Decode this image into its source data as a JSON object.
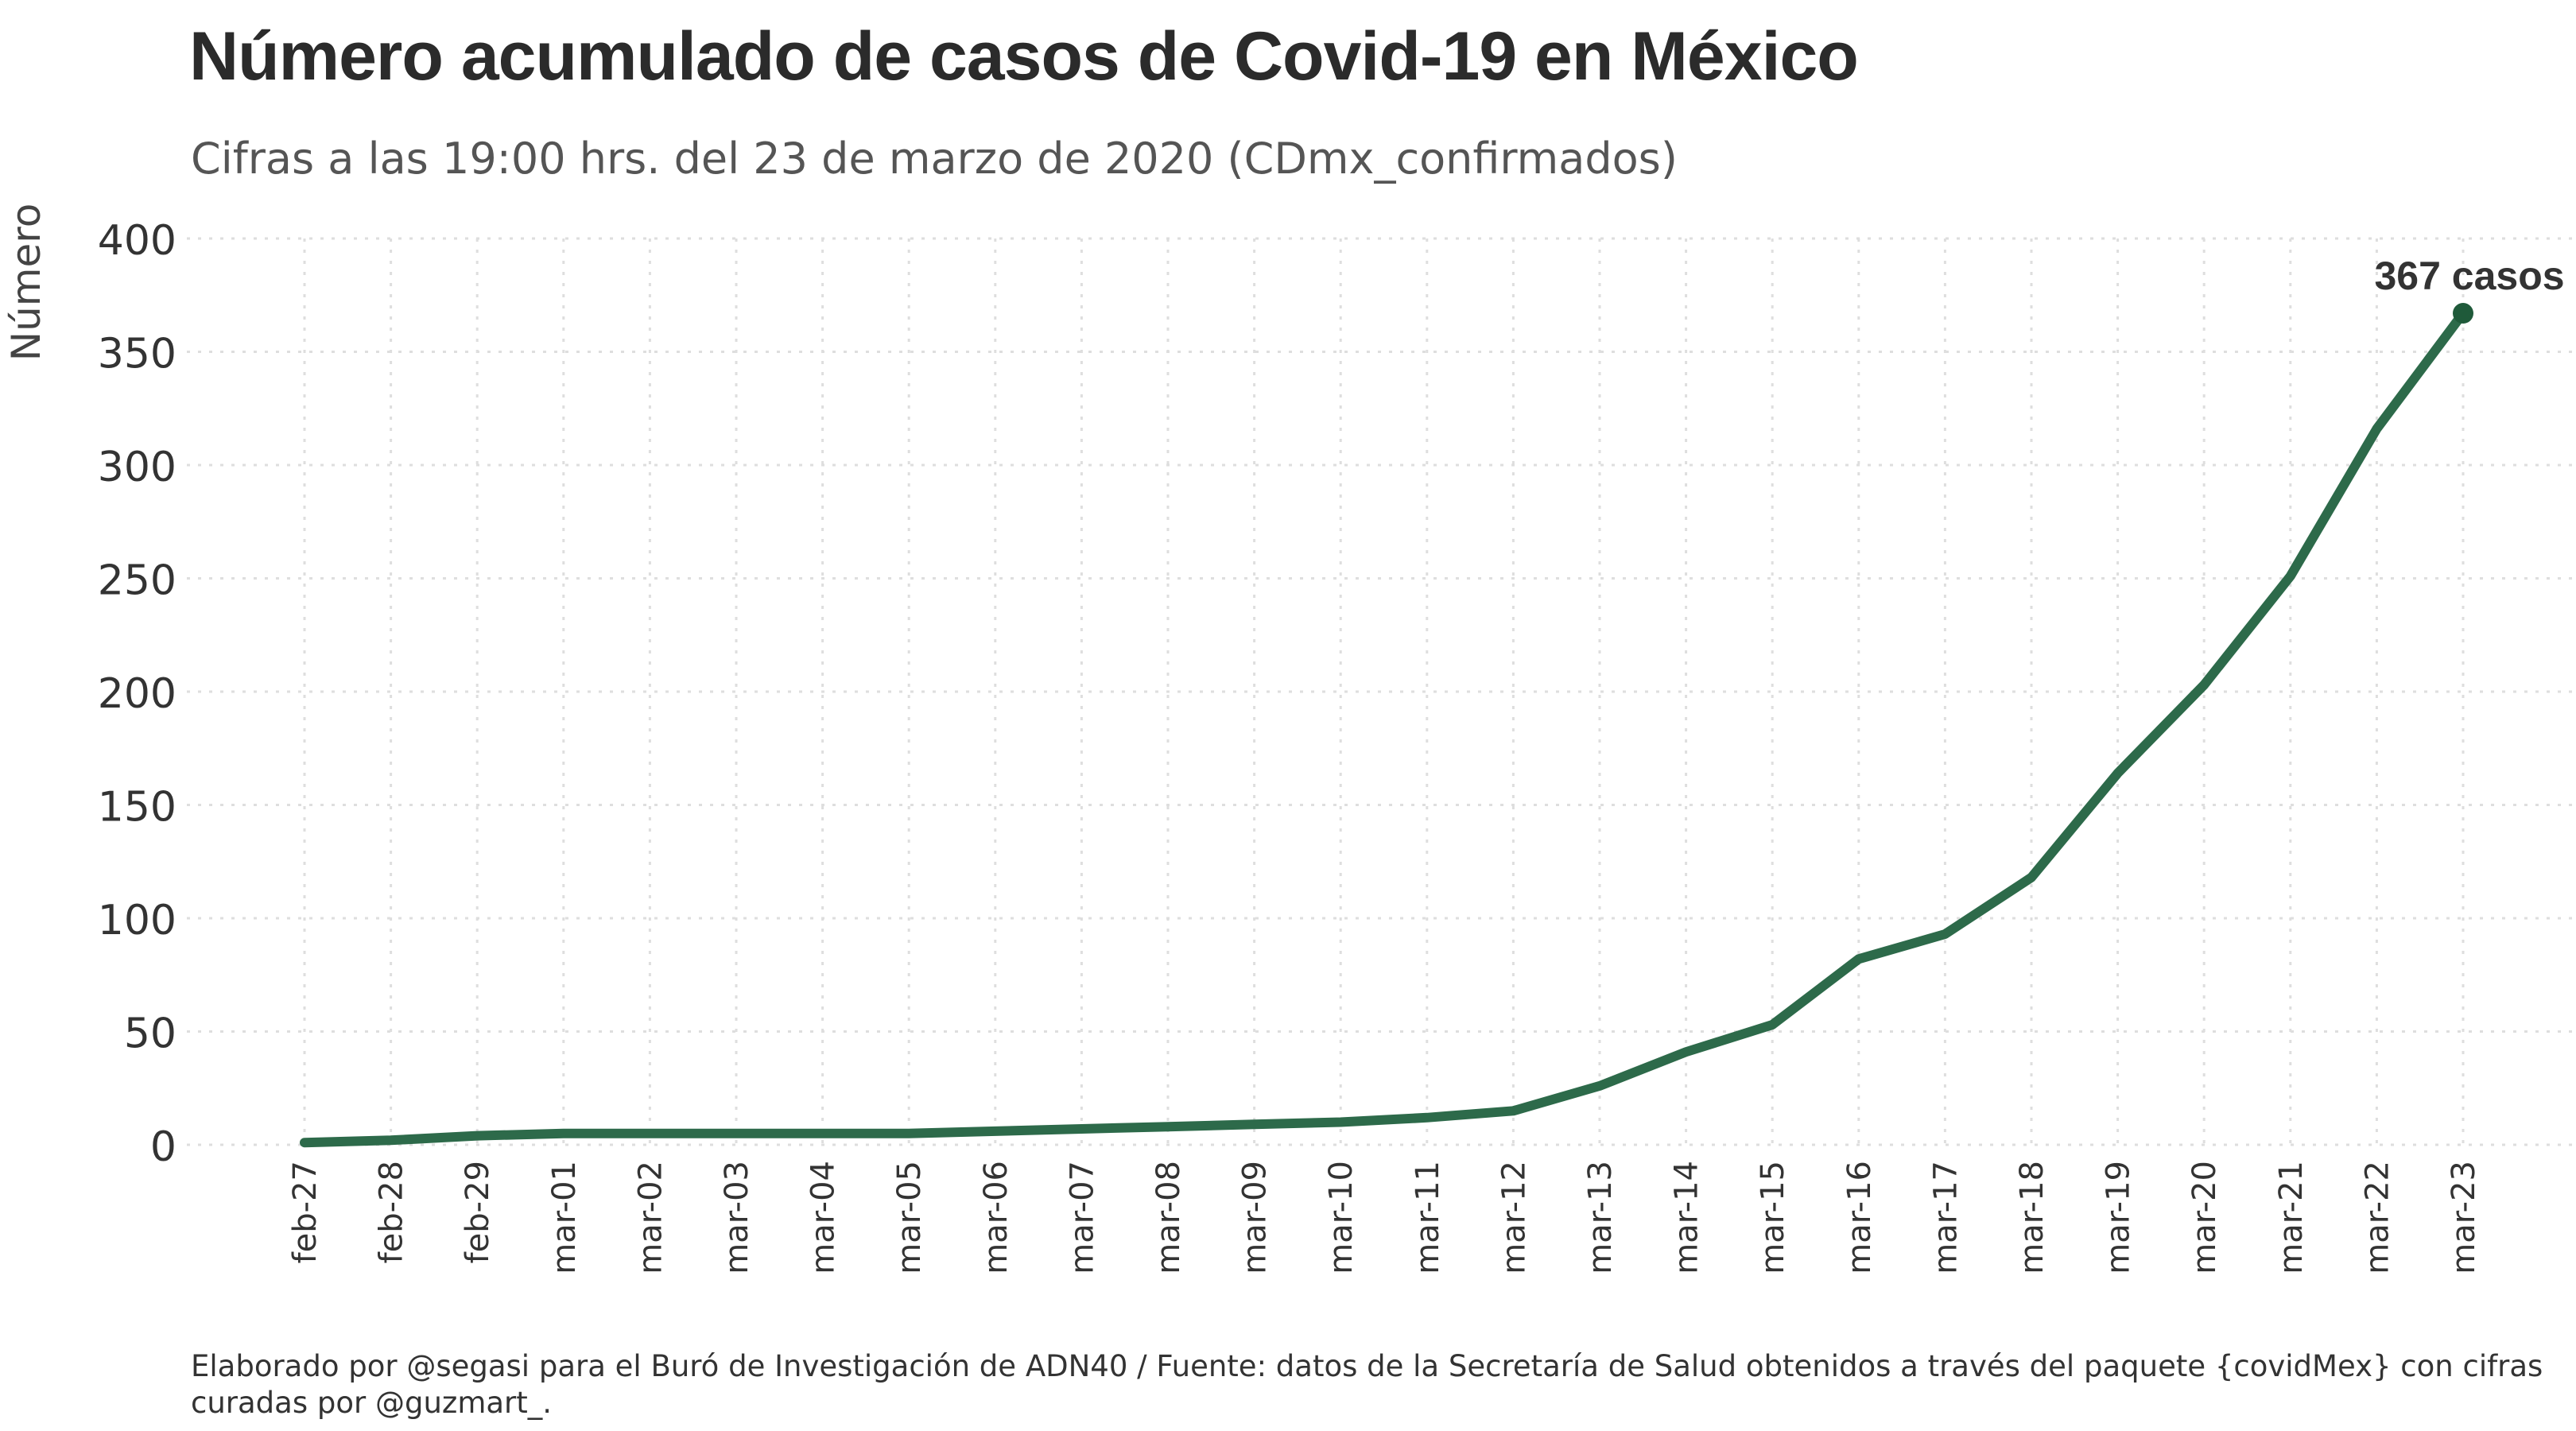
{
  "header": {
    "title": "Número acumulado de casos de Covid-19 en México",
    "subtitle": "Cifras a las 19:00 hrs. del 23 de marzo de 2020 (CDmx_confirmados)"
  },
  "caption": "Elaborado por @segasi  para el Buró de Investigación de ADN40 / Fuente: datos de la Secretaría de Salud obtenidos a través del paquete {covidMex} con cifras curadas por @guzmart_.",
  "chart_data": {
    "type": "line",
    "title": "Número acumulado de casos de Covid-19 en México",
    "subtitle": "Cifras a las 19:00 hrs. del 23 de marzo de 2020 (CDmx_confirmados)",
    "xlabel": "",
    "ylabel": "Número",
    "ylim": [
      0,
      400
    ],
    "yticks": [
      0,
      50,
      100,
      150,
      200,
      250,
      300,
      350,
      400
    ],
    "grid": true,
    "line_color": "#2d6a4a",
    "point_color": "#1f5a3a",
    "categories": [
      "feb-27",
      "feb-28",
      "feb-29",
      "mar-01",
      "mar-02",
      "mar-03",
      "mar-04",
      "mar-05",
      "mar-06",
      "mar-07",
      "mar-08",
      "mar-09",
      "mar-10",
      "mar-11",
      "mar-12",
      "mar-13",
      "mar-14",
      "mar-15",
      "mar-16",
      "mar-17",
      "mar-18",
      "mar-19",
      "mar-20",
      "mar-21",
      "mar-22",
      "mar-23"
    ],
    "series": [
      {
        "values": [
          1,
          2,
          4,
          5,
          5,
          5,
          5,
          5,
          6,
          7,
          8,
          9,
          10,
          12,
          15,
          26,
          41,
          53,
          82,
          93,
          118,
          164,
          203,
          251,
          316,
          367
        ]
      }
    ],
    "annotation": {
      "text": "367 casos",
      "category": "mar-23",
      "value": 367
    }
  }
}
